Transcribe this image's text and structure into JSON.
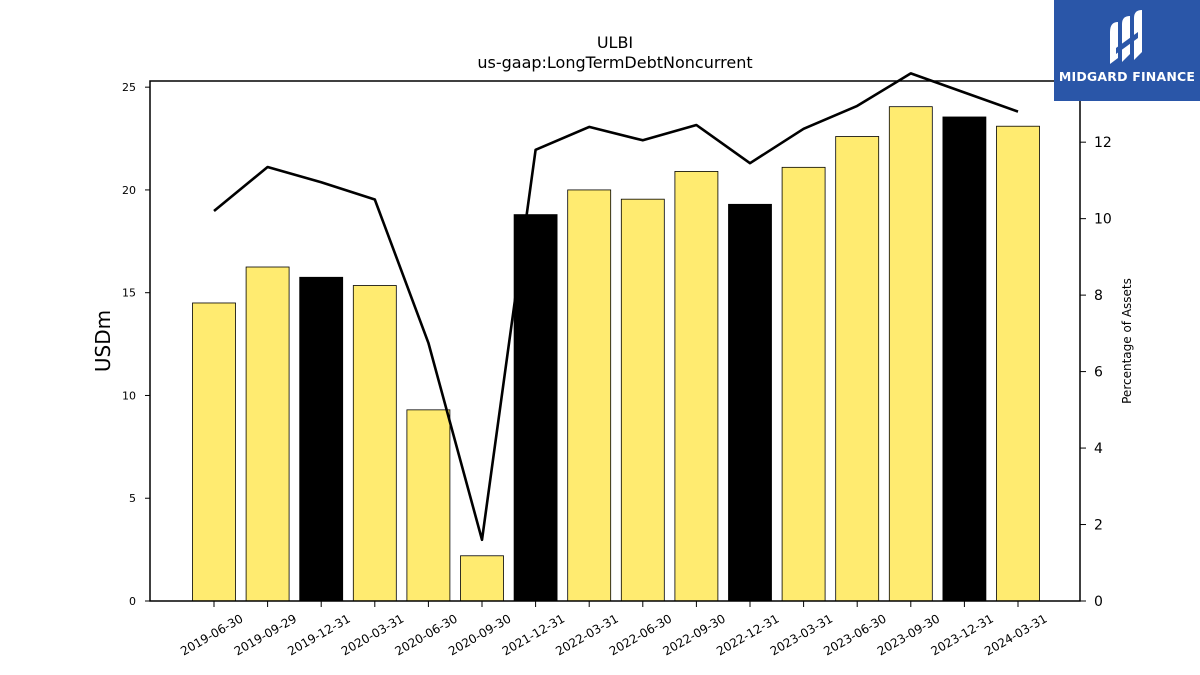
{
  "chart_data": {
    "type": "bar+line",
    "title": "ULBI",
    "subtitle": "us-gaap:LongTermDebtNoncurrent",
    "ylabel": "USDm",
    "y2label": "Percentage of Assets",
    "ylim": [
      0,
      25.3
    ],
    "y2lim": [
      0,
      13.6
    ],
    "yticks": [
      0,
      5,
      10,
      15,
      20,
      25
    ],
    "y2ticks": [
      0,
      2,
      4,
      6,
      8,
      10,
      12
    ],
    "categories": [
      "2019-06-30",
      "2019-09-29",
      "2019-12-31",
      "2020-03-31",
      "2020-06-30",
      "2020-09-30",
      "2021-12-31",
      "2022-03-31",
      "2022-06-30",
      "2022-09-30",
      "2022-12-31",
      "2023-03-31",
      "2023-06-30",
      "2023-09-30",
      "2023-12-31",
      "2024-03-31"
    ],
    "series": [
      {
        "kind": "bar",
        "axis": "left",
        "values": [
          14.5,
          16.25,
          15.75,
          15.35,
          9.3,
          2.2,
          18.8,
          20.0,
          19.55,
          20.9,
          19.3,
          21.1,
          22.6,
          24.05,
          23.55,
          23.1
        ],
        "colors": [
          "#ffeb70",
          "#ffeb70",
          "#000000",
          "#ffeb70",
          "#ffeb70",
          "#ffeb70",
          "#000000",
          "#ffeb70",
          "#ffeb70",
          "#ffeb70",
          "#000000",
          "#ffeb70",
          "#ffeb70",
          "#ffeb70",
          "#000000",
          "#ffeb70"
        ]
      },
      {
        "kind": "line",
        "axis": "right",
        "color": "#000000",
        "values": [
          10.2,
          11.35,
          10.95,
          10.5,
          6.75,
          1.6,
          11.8,
          12.4,
          12.05,
          12.45,
          11.45,
          12.35,
          12.95,
          13.8,
          13.3,
          12.8
        ]
      }
    ],
    "grid": false,
    "legend": "none"
  },
  "logo": {
    "text": "MIDGARD FINANCE",
    "bg_color": "#2a56a8",
    "icon": "midgard-logo-icon"
  }
}
